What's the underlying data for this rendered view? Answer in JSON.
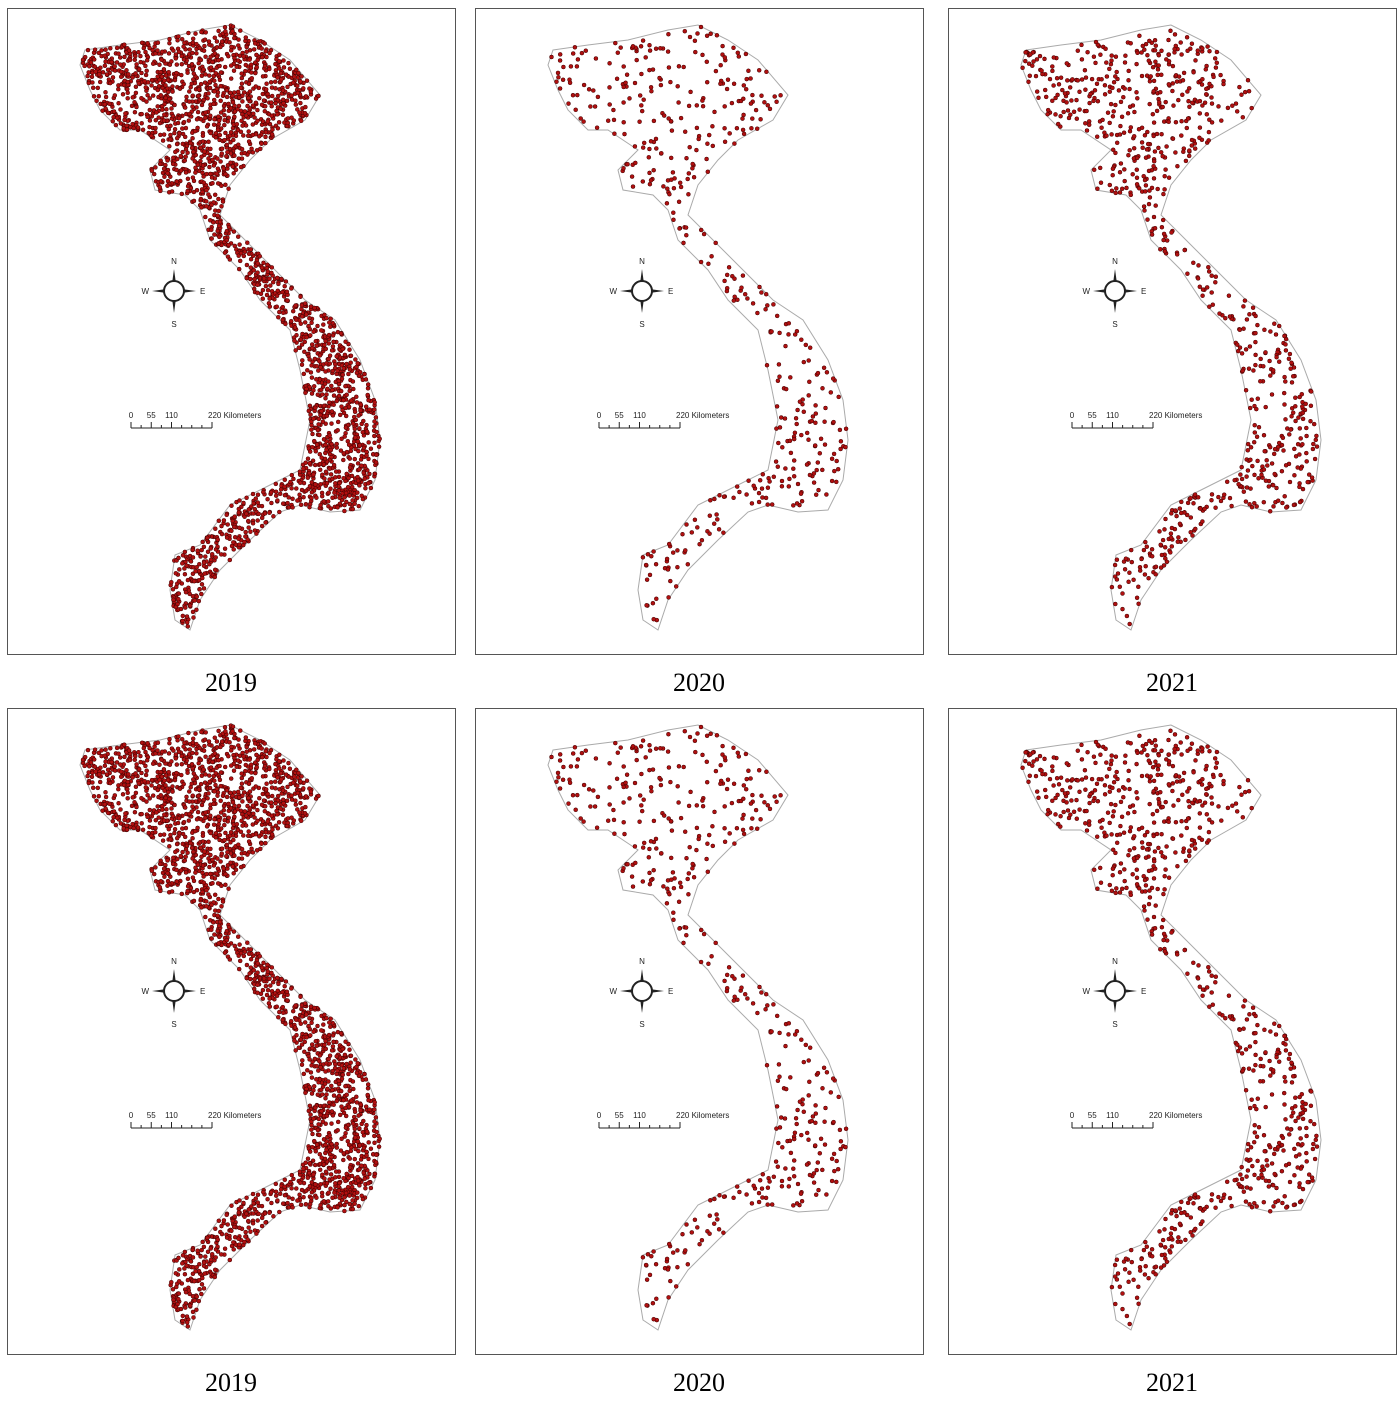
{
  "panels": [
    {
      "year": "2019",
      "compass": {
        "north": "N",
        "west": "W",
        "east": "E",
        "south": "S"
      },
      "scale_labels": [
        "0",
        "55",
        "110",
        "220 Kilometers"
      ]
    },
    {
      "year": "2020",
      "compass": {
        "north": "N",
        "west": "W",
        "east": "E",
        "south": "S"
      },
      "scale_labels": [
        "0",
        "55",
        "110",
        "220 Kilometers"
      ]
    },
    {
      "year": "2021",
      "compass": {
        "north": "N",
        "west": "W",
        "east": "E",
        "south": "S"
      },
      "scale_labels": [
        "0",
        "55",
        "110",
        "220 Kilometers"
      ]
    },
    {
      "year": "2019",
      "compass": {
        "north": "N",
        "west": "W",
        "east": "E",
        "south": "S"
      },
      "scale_labels": [
        "0",
        "55",
        "110",
        "220 Kilometers"
      ]
    },
    {
      "year": "2020",
      "compass": {
        "north": "N",
        "west": "W",
        "east": "E",
        "south": "S"
      },
      "scale_labels": [
        "0",
        "55",
        "110",
        "220 Kilometers"
      ]
    },
    {
      "year": "2021",
      "compass": {
        "north": "N",
        "west": "W",
        "east": "E",
        "south": "S"
      },
      "scale_labels": [
        "0",
        "55",
        "110",
        "220 Kilometers"
      ]
    }
  ]
}
